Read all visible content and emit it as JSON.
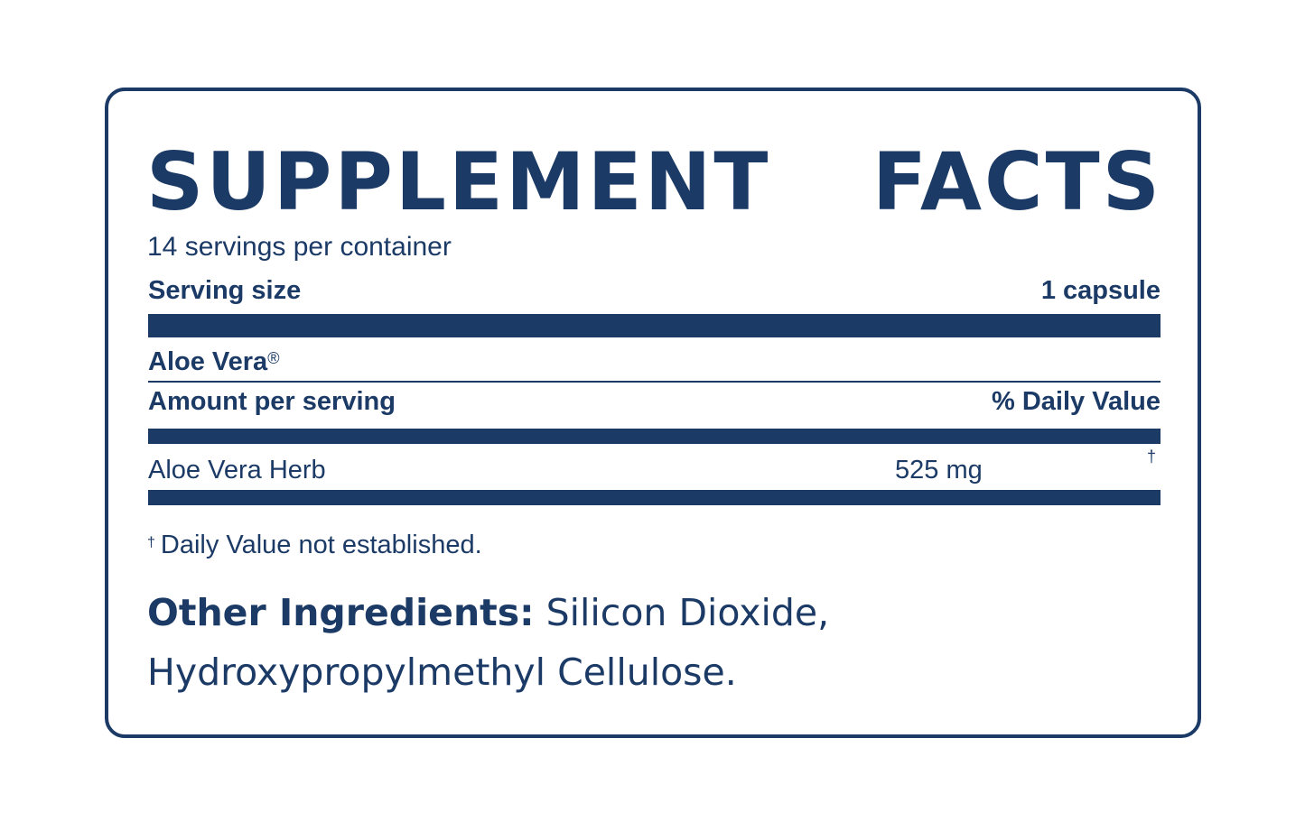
{
  "label": {
    "title_words": [
      "SUPPLEMENT",
      "FACTS"
    ],
    "servings_per_container": "14 servings per container",
    "serving_size_label": "Serving size",
    "serving_size_value": "1 capsule",
    "product_name": "Aloe Vera",
    "registered_mark": "®",
    "amount_header": "Amount per serving",
    "dv_header": "% Daily Value",
    "ingredients": [
      {
        "name": "Aloe Vera Herb",
        "amount": "525 mg",
        "dv": "†"
      }
    ],
    "footnote_mark": "†",
    "footnote_text": "Daily Value not established.",
    "other_ingredients_label": "Other Ingredients:",
    "other_ingredients_line1": "Silicon Dioxide,",
    "other_ingredients_line2": "Hydroxypropylmethyl Cellulose."
  },
  "colors": {
    "brand": "#1b3a66",
    "background": "#ffffff"
  }
}
